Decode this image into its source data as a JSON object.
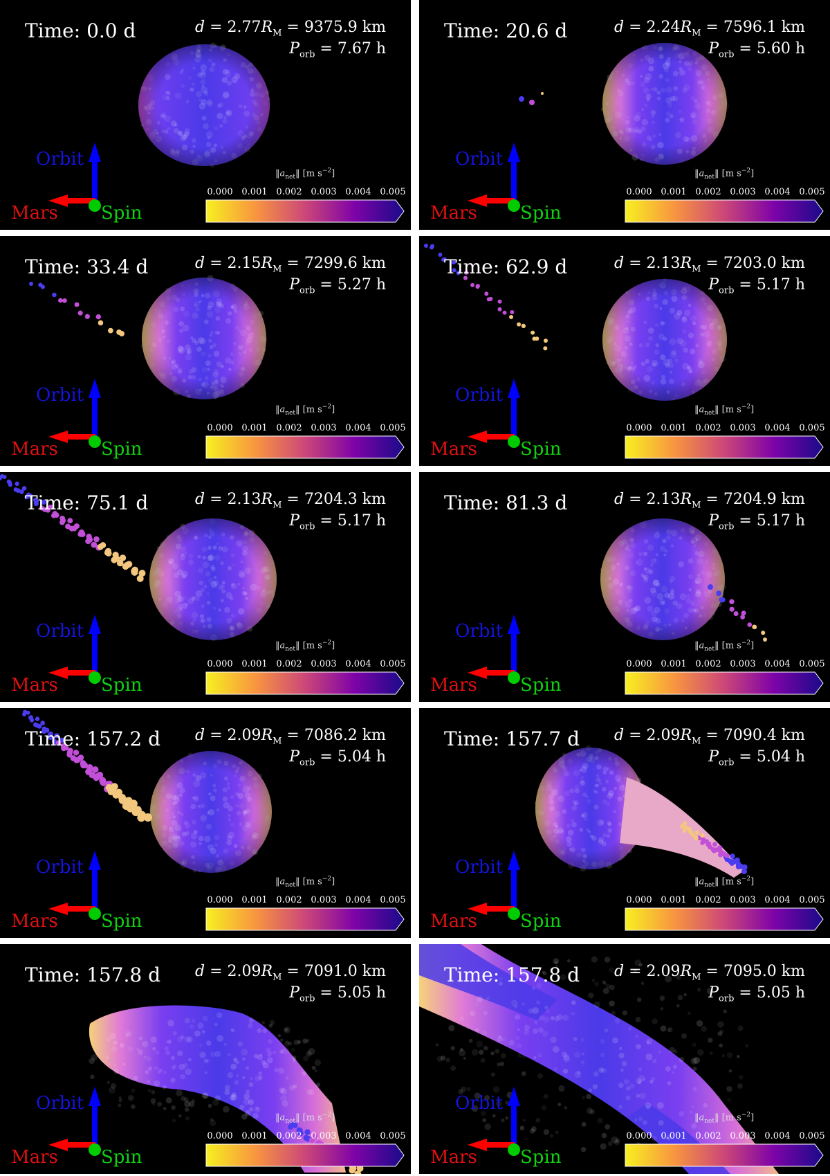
{
  "axis_labels": {
    "orbit": "Orbit",
    "mars": "Mars",
    "spin": "Spin"
  },
  "colorbar": {
    "quantity": "||a_net|| [m s^-2]",
    "ticks": [
      "0.000",
      "0.001",
      "0.002",
      "0.003",
      "0.004",
      "0.005"
    ],
    "colormap": "plasma_r"
  },
  "colors": {
    "orbit_axis": "#0000ff",
    "mars_axis": "#ff0000",
    "spin_axis": "#00cc00"
  },
  "panels": [
    {
      "time": "Time: 0.0 d",
      "d_ratio": "2.77",
      "d_km": "9375.9 km",
      "p_orb": "7.67 h",
      "shape": "sphere"
    },
    {
      "time": "Time: 20.6 d",
      "d_ratio": "2.24",
      "d_km": "7596.1 km",
      "p_orb": "5.60 h",
      "shape": "sphere-shed"
    },
    {
      "time": "Time: 33.4 d",
      "d_ratio": "2.15",
      "d_km": "7299.6 km",
      "p_orb": "5.27 h",
      "shape": "sphere-stream-short"
    },
    {
      "time": "Time: 62.9 d",
      "d_ratio": "2.13",
      "d_km": "7203.0 km",
      "p_orb": "5.17 h",
      "shape": "sphere-stream-long"
    },
    {
      "time": "Time: 75.1 d",
      "d_ratio": "2.13",
      "d_km": "7204.3 km",
      "p_orb": "5.17 h",
      "shape": "sphere-stream-thick"
    },
    {
      "time": "Time: 81.3 d",
      "d_ratio": "2.13",
      "d_km": "7204.9 km",
      "p_orb": "5.17 h",
      "shape": "sphere-stream-right"
    },
    {
      "time": "Time: 157.2 d",
      "d_ratio": "2.09",
      "d_km": "7086.2 km",
      "p_orb": "5.04 h",
      "shape": "sphere-stream-neck"
    },
    {
      "time": "Time: 157.7 d",
      "d_ratio": "2.09",
      "d_km": "7090.4 km",
      "p_orb": "5.04 h",
      "shape": "pear-right"
    },
    {
      "time": "Time: 157.8 d",
      "d_ratio": "2.09",
      "d_km": "7091.0 km",
      "p_orb": "5.05 h",
      "shape": "elongated"
    },
    {
      "time": "Time: 157.8 d",
      "d_ratio": "2.09",
      "d_km": "7095.0 km",
      "p_orb": "5.05 h",
      "shape": "disrupted-band"
    }
  ]
}
